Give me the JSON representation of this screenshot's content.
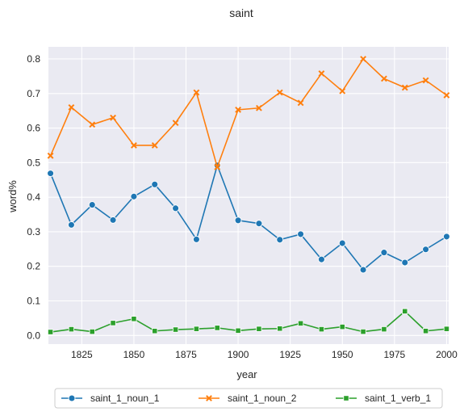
{
  "chart_data": {
    "type": "line",
    "title": "saint",
    "xlabel": "year",
    "ylabel": "word%",
    "xlim": [
      1809,
      2001
    ],
    "ylim": [
      -0.025,
      0.835
    ],
    "xticks": [
      1825,
      1850,
      1875,
      1900,
      1925,
      1950,
      1975,
      2000
    ],
    "yticks": [
      0.0,
      0.1,
      0.2,
      0.3,
      0.4,
      0.5,
      0.6,
      0.7,
      0.8
    ],
    "grid": true,
    "legend_position": "bottom-center",
    "x": [
      1810,
      1820,
      1830,
      1840,
      1850,
      1860,
      1870,
      1880,
      1890,
      1900,
      1910,
      1920,
      1930,
      1940,
      1950,
      1960,
      1970,
      1980,
      1990,
      2000
    ],
    "series": [
      {
        "name": "saint_1_noun_1",
        "color": "#1f77b4",
        "marker": "circle",
        "values": [
          0.469,
          0.32,
          0.378,
          0.334,
          0.402,
          0.437,
          0.368,
          0.278,
          0.492,
          0.333,
          0.324,
          0.277,
          0.293,
          0.22,
          0.267,
          0.19,
          0.24,
          0.211,
          0.249,
          0.286
        ]
      },
      {
        "name": "saint_1_noun_2",
        "color": "#ff7f0e",
        "marker": "x",
        "values": [
          0.52,
          0.66,
          0.61,
          0.63,
          0.55,
          0.55,
          0.615,
          0.703,
          0.487,
          0.653,
          0.658,
          0.703,
          0.673,
          0.758,
          0.707,
          0.8,
          0.743,
          0.717,
          0.738,
          0.695
        ]
      },
      {
        "name": "saint_1_verb_1",
        "color": "#2ca02c",
        "marker": "square",
        "values": [
          0.01,
          0.018,
          0.011,
          0.036,
          0.048,
          0.013,
          0.017,
          0.019,
          0.022,
          0.014,
          0.019,
          0.02,
          0.035,
          0.018,
          0.025,
          0.011,
          0.018,
          0.07,
          0.013,
          0.019
        ]
      }
    ]
  }
}
